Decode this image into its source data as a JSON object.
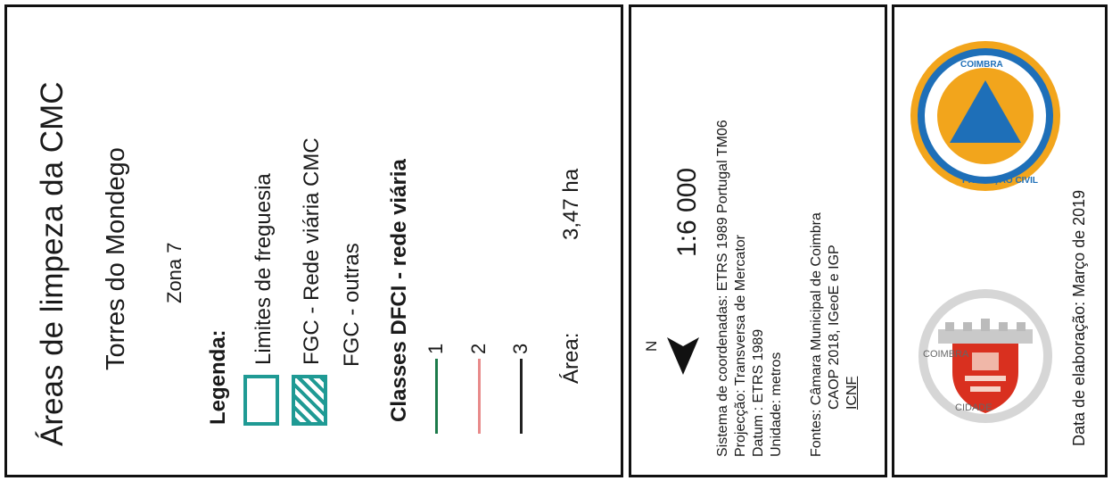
{
  "panel1": {
    "title": "Áreas de limpeza da CMC",
    "place": "Torres do Mondego",
    "zone": "Zona 7",
    "legend_heading": "Legenda:",
    "legend_items": [
      {
        "label": "Limites de freguesia",
        "style": "outline",
        "color": "#1f9a94"
      },
      {
        "label": "FGC - Rede viária CMC",
        "style": "hatched",
        "color": "#1f9a94"
      },
      {
        "label": "FGC - outras",
        "style": "none"
      }
    ],
    "road_heading": "Classes DFCI - rede viária",
    "roads": [
      {
        "label": "1",
        "color": "#1c7a4a"
      },
      {
        "label": "2",
        "color": "#e88a8a"
      },
      {
        "label": "3",
        "color": "#222222"
      }
    ],
    "area_label": "Área:",
    "area_value": "3,47 ha"
  },
  "panel2": {
    "north": "N",
    "scale": "1:6 000",
    "coord_lines": [
      "Sistema de coordenadas: ETRS 1989 Portugal TM06",
      "Projecção: Transversa de Mercator",
      "Datum : ETRS 1989",
      "Unidade: metros"
    ],
    "sources_lines": [
      "Fontes: Câmara Municipal de Coimbra",
      "CAOP 2018, IGeoE e IGP",
      "ICNF"
    ]
  },
  "panel3": {
    "coat_top": "COIMBRA",
    "coat_bottom": "CIDADE",
    "seal_top": "PROTEÇÃO CIVIL",
    "seal_side": "COIMBRA",
    "date": "Data de elaboração: Março de 2019",
    "colors": {
      "seal_blue": "#1e6fb8",
      "seal_orange": "#f2a51c",
      "coat_red": "#d9301f"
    }
  }
}
